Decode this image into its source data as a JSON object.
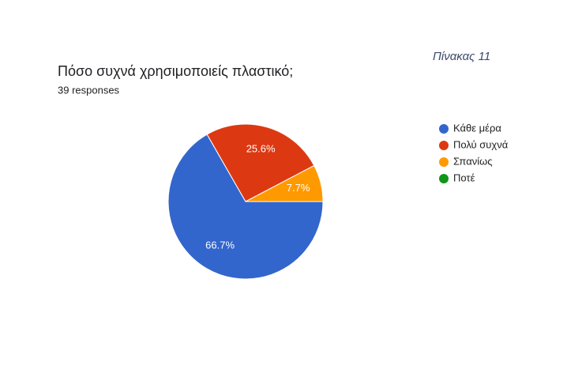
{
  "chart_data": {
    "type": "pie",
    "title": "Πόσο συχνά χρησιμοποιείς πλαστικό;",
    "subtitle": "39 responses",
    "annotation": "Πίνακας 11",
    "categories": [
      "Κάθε μέρα",
      "Πολύ συχνά",
      "Σπανίως",
      "Ποτέ"
    ],
    "values": [
      66.7,
      25.6,
      7.7,
      0
    ],
    "value_labels": [
      "66.7%",
      "25.6%",
      "7.7%",
      null
    ],
    "colors": [
      "#3366cc",
      "#dc3912",
      "#ff9900",
      "#109618"
    ],
    "legend": "right"
  }
}
